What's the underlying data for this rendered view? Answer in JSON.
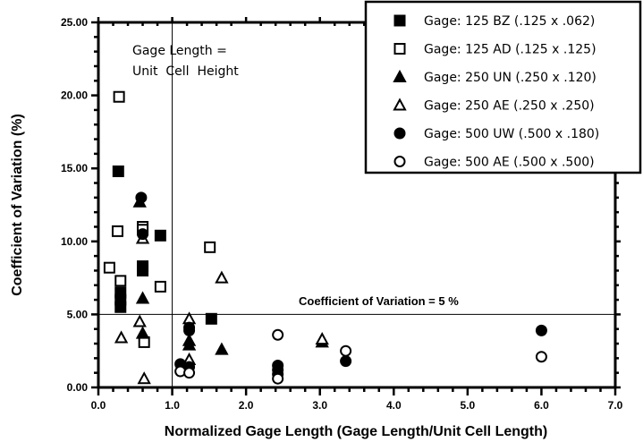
{
  "chart_data": {
    "type": "scatter",
    "title": "",
    "xlabel": "Normalized Gage Length (Gage Length/Unit Cell Length)",
    "ylabel": "Coefficient of Variation (%)",
    "xlim": [
      0,
      7
    ],
    "ylim": [
      0,
      25
    ],
    "xticks": [
      "0.0",
      "1.0",
      "2.0",
      "3.0",
      "4.0",
      "5.0",
      "6.0",
      "7.0"
    ],
    "yticks": [
      "0.00",
      "5.00",
      "10.00",
      "15.00",
      "20.00",
      "25.00"
    ],
    "grid": false,
    "legend_position": "top-right",
    "reference_lines": [
      {
        "type": "vertical",
        "x": 1.0,
        "label_lines": [
          "Gage Length =",
          "Unit  Cell  Height"
        ]
      },
      {
        "type": "horizontal",
        "y": 5.0,
        "label": "Coefficient of Variation = 5 %"
      }
    ],
    "series": [
      {
        "name": "Gage: 125 BZ (.125 x .062)",
        "marker": "square-filled",
        "points": [
          [
            0.27,
            14.8
          ],
          [
            0.3,
            6.5
          ],
          [
            0.3,
            6.0
          ],
          [
            0.3,
            5.5
          ],
          [
            0.6,
            8.3
          ],
          [
            0.6,
            8.0
          ],
          [
            0.84,
            10.4
          ],
          [
            1.53,
            4.7
          ]
        ]
      },
      {
        "name": "Gage: 125 AD (.125 x .125)",
        "marker": "square-open",
        "points": [
          [
            0.28,
            19.9
          ],
          [
            0.26,
            10.7
          ],
          [
            0.6,
            11.0
          ],
          [
            0.6,
            10.8
          ],
          [
            0.15,
            8.2
          ],
          [
            0.3,
            7.3
          ],
          [
            0.84,
            6.9
          ],
          [
            0.62,
            3.1
          ],
          [
            1.51,
            9.6
          ]
        ]
      },
      {
        "name": "Gage: 250 UN (.250 x .120)",
        "marker": "triangle-filled",
        "points": [
          [
            0.56,
            12.7
          ],
          [
            0.6,
            6.1
          ],
          [
            0.6,
            3.7
          ],
          [
            1.23,
            3.2
          ],
          [
            1.23,
            2.9
          ],
          [
            1.67,
            2.6
          ],
          [
            3.03,
            3.1
          ]
        ]
      },
      {
        "name": "Gage: 250 AE (.250 x .250)",
        "marker": "triangle-open",
        "points": [
          [
            0.6,
            10.2
          ],
          [
            0.56,
            4.5
          ],
          [
            0.31,
            3.4
          ],
          [
            0.62,
            0.6
          ],
          [
            1.67,
            7.5
          ],
          [
            1.23,
            4.7
          ],
          [
            1.23,
            1.9
          ],
          [
            3.03,
            3.3
          ]
        ]
      },
      {
        "name": "Gage: 500 UW (.500 x .180)",
        "marker": "circle-filled",
        "points": [
          [
            0.58,
            13.0
          ],
          [
            0.6,
            10.5
          ],
          [
            1.23,
            4.1
          ],
          [
            1.23,
            3.9
          ],
          [
            1.11,
            1.6
          ],
          [
            1.23,
            1.4
          ],
          [
            2.43,
            1.5
          ],
          [
            2.43,
            1.2
          ],
          [
            2.43,
            0.9
          ],
          [
            3.35,
            1.8
          ],
          [
            6.0,
            3.9
          ]
        ]
      },
      {
        "name": "Gage: 500 AE (.500 x .500)",
        "marker": "circle-open",
        "points": [
          [
            1.11,
            1.1
          ],
          [
            1.23,
            1.0
          ],
          [
            2.43,
            3.6
          ],
          [
            2.43,
            0.6
          ],
          [
            3.35,
            2.5
          ],
          [
            6.0,
            2.1
          ]
        ]
      }
    ]
  }
}
